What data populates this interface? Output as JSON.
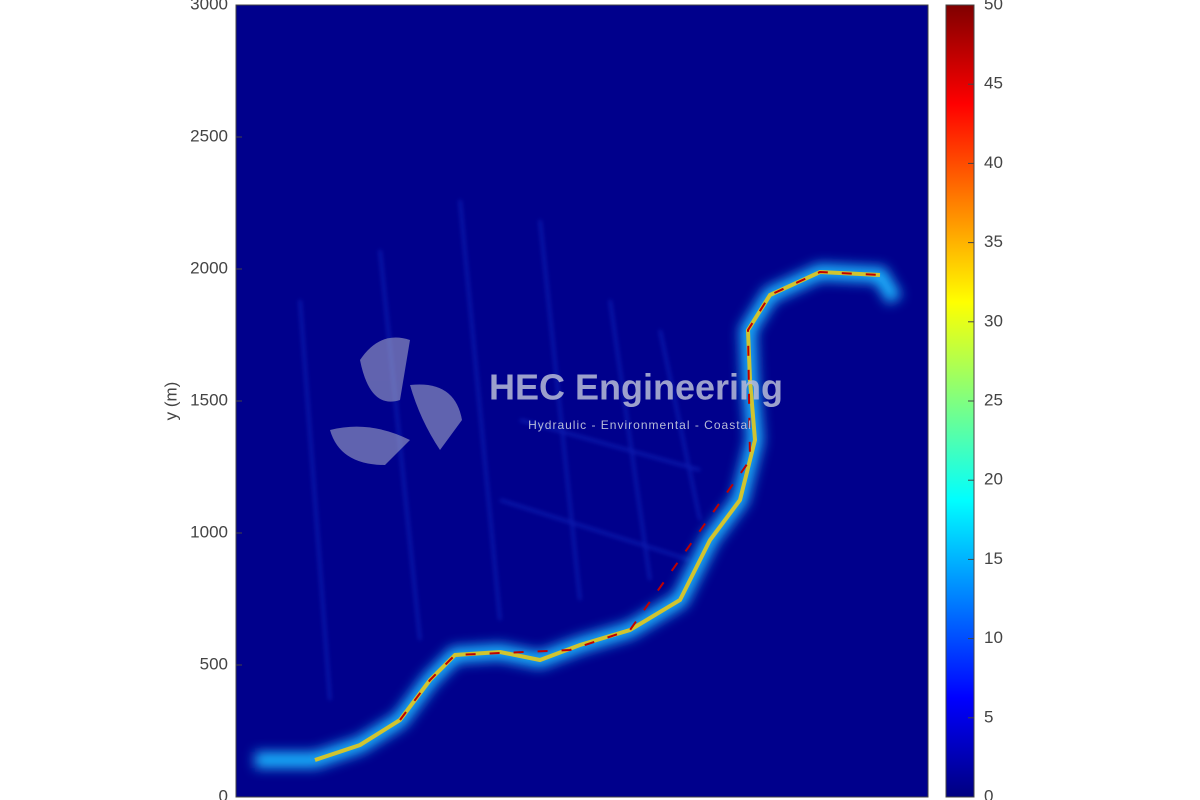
{
  "chart_data": {
    "type": "heatmap",
    "ylabel": "y (m)",
    "ylim": [
      0,
      3000
    ],
    "yticks": [
      0,
      500,
      1000,
      1500,
      2000,
      2500,
      3000
    ],
    "colorbar": {
      "clim": [
        0,
        50
      ],
      "ticks": [
        0,
        5,
        10,
        15,
        20,
        25,
        30,
        35,
        40,
        45,
        50
      ],
      "colormap": "jet"
    },
    "watermark": {
      "title": "HEC Engineering",
      "subtitle": "Hydraulic - Environmental - Coastal"
    }
  }
}
